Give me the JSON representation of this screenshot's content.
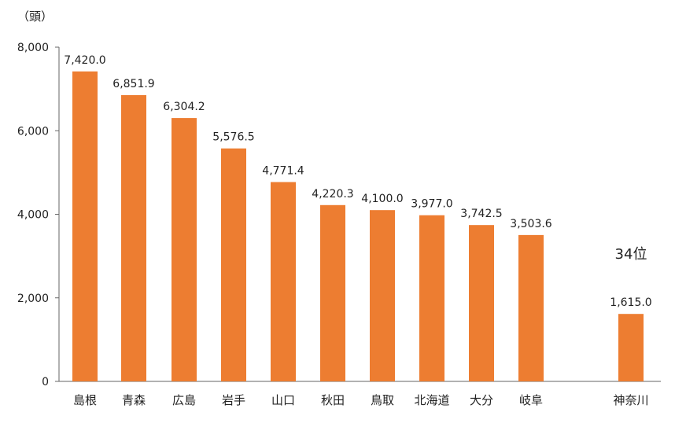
{
  "chart_data": {
    "type": "bar",
    "unit_label": "（頭）",
    "categories": [
      "島根",
      "青森",
      "広島",
      "岩手",
      "山口",
      "秋田",
      "鳥取",
      "北海道",
      "大分",
      "岐阜",
      "神奈川"
    ],
    "values": [
      7420.0,
      6851.9,
      6304.2,
      5576.5,
      4771.4,
      4220.3,
      4100.0,
      3977.0,
      3742.5,
      3503.6,
      1615.0
    ],
    "value_labels": [
      "7,420.0",
      "6,851.9",
      "6,304.2",
      "5,576.5",
      "4,771.4",
      "4,220.3",
      "4,100.0",
      "3,977.0",
      "3,742.5",
      "3,503.6",
      "1,615.0"
    ],
    "y_ticks": [
      "0",
      "2,000",
      "4,000",
      "6,000",
      "8,000"
    ],
    "y_tick_values": [
      0,
      2000,
      4000,
      6000,
      8000
    ],
    "ylim": [
      0,
      8000
    ],
    "bar_color": "#ED7D31",
    "grid": false,
    "annotation": {
      "text": "34位",
      "category": "神奈川"
    }
  }
}
